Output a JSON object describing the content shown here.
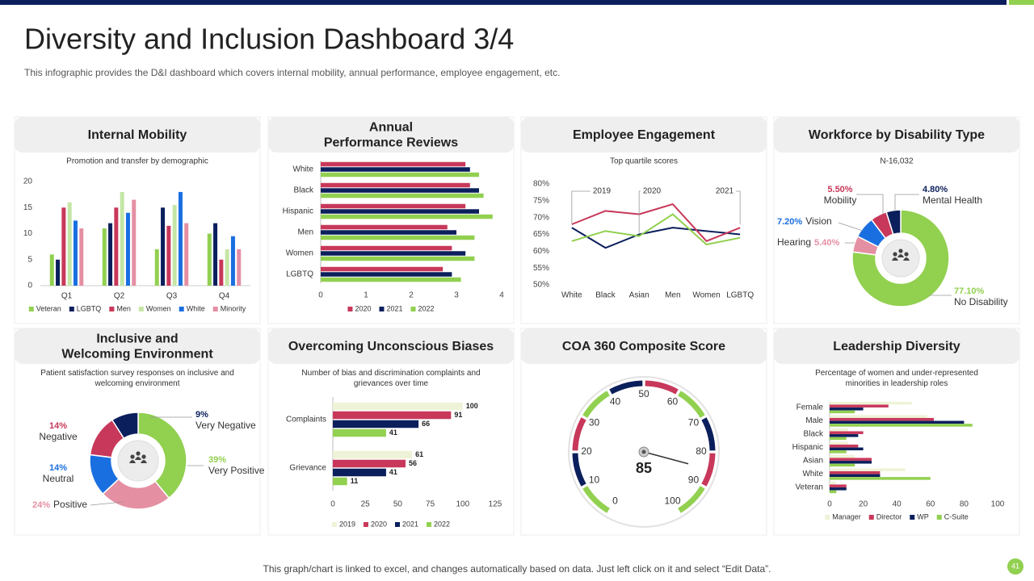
{
  "title": "Diversity and Inclusion Dashboard 3/4",
  "subtitle": "This infographic provides the D&I dashboard which covers internal mobility, annual performance, employee engagement, etc.",
  "footer": "This graph/chart is linked to excel, and changes automatically based on data. Just left click on it and select “Edit Data”.",
  "page_number": 41,
  "chart_data": [
    {
      "type": "bar",
      "title": "Internal Mobility",
      "subtitle": "Promotion and transfer by demographic",
      "categories": [
        "Q1",
        "Q2",
        "Q3",
        "Q4"
      ],
      "series": [
        {
          "name": "Veteran",
          "color": "#92d050",
          "values": [
            6,
            11,
            7,
            10
          ]
        },
        {
          "name": "LGBTQ",
          "color": "#0b1f5c",
          "values": [
            5,
            12,
            15,
            12
          ]
        },
        {
          "name": "Men",
          "color": "#c8385a",
          "values": [
            15,
            15,
            11.5,
            5
          ]
        },
        {
          "name": "Women",
          "color": "#c5e6a6",
          "values": [
            16,
            18,
            15.5,
            7
          ]
        },
        {
          "name": "White",
          "color": "#1a6fe0",
          "values": [
            12.5,
            14,
            18,
            9.5
          ]
        },
        {
          "name": "Minority",
          "color": "#e58fa3",
          "values": [
            11,
            16.5,
            12,
            7
          ]
        }
      ],
      "ylim": [
        0,
        20
      ],
      "yticks": [
        0,
        5,
        10,
        15,
        20
      ]
    },
    {
      "type": "hbar",
      "title": "Annual\nPerformance Reviews",
      "categories": [
        "White",
        "Black",
        "Hispanic",
        "Men",
        "Women",
        "LGBTQ"
      ],
      "series": [
        {
          "name": "2020",
          "color": "#c8385a",
          "values": [
            3.2,
            3.3,
            3.2,
            2.8,
            2.9,
            2.7
          ]
        },
        {
          "name": "2021",
          "color": "#0b1f5c",
          "values": [
            3.3,
            3.5,
            3.5,
            3.0,
            3.2,
            2.9
          ]
        },
        {
          "name": "2022",
          "color": "#92d050",
          "values": [
            3.5,
            3.6,
            3.8,
            3.4,
            3.4,
            3.1
          ]
        }
      ],
      "xlim": [
        0,
        4
      ],
      "xticks": [
        0,
        1,
        2,
        3,
        4
      ]
    },
    {
      "type": "line",
      "title": "Employee Engagement",
      "subtitle": "Top quartile scores",
      "categories": [
        "White",
        "Black",
        "Asian",
        "Men",
        "Women",
        "LGBTQ"
      ],
      "series": [
        {
          "name": "2019",
          "color": "#0b1f5c",
          "values": [
            67,
            61,
            65,
            67,
            66,
            65
          ]
        },
        {
          "name": "2020",
          "color": "#92d050",
          "values": [
            63,
            66,
            64.5,
            71,
            62,
            64
          ]
        },
        {
          "name": "2021",
          "color": "#c8385a",
          "values": [
            68,
            72,
            71,
            74,
            63,
            67
          ]
        }
      ],
      "ylim": [
        50,
        80
      ],
      "yticks": [
        {
          "value": 50,
          "label": "50%"
        },
        {
          "value": 55,
          "label": "55%"
        },
        {
          "value": 60,
          "label": "60%"
        },
        {
          "value": 65,
          "label": "65%"
        },
        {
          "value": 70,
          "label": "70%"
        },
        {
          "value": 75,
          "label": "75%"
        },
        {
          "value": 80,
          "label": "80%"
        }
      ]
    },
    {
      "type": "donut",
      "title": "Workforce by Disability Type",
      "subtitle": "N-16,032",
      "categories": [
        "No Disability",
        "Hearing",
        "Vision",
        "Mobility",
        "Mental Health"
      ],
      "values": [
        77.1,
        5.4,
        7.2,
        5.5,
        4.8
      ],
      "value_labels": [
        "77.10%",
        "5.40%",
        "7.20%",
        "5.50%",
        "4.80%"
      ],
      "colors": [
        "#92d050",
        "#e58fa3",
        "#1a6fe0",
        "#c8385a",
        "#0b1f5c"
      ]
    },
    {
      "type": "donut",
      "title": "Inclusive and\nWelcoming Environment",
      "subtitle": "Patient satisfaction survey responses on inclusive and\nwelcoming environment",
      "categories": [
        "Very Positive",
        "Positive",
        "Neutral",
        "Negative",
        "Very Negative"
      ],
      "values": [
        39,
        24,
        14,
        14,
        9
      ],
      "value_labels": [
        "39%",
        "24%",
        "14%",
        "14%",
        "9%"
      ],
      "colors": [
        "#92d050",
        "#e58fa3",
        "#1a6fe0",
        "#c8385a",
        "#0b1f5c"
      ]
    },
    {
      "type": "hbar",
      "title": "Overcoming Unconscious Biases",
      "subtitle": "Number of bias and discrimination complaints and\ngrievances over time",
      "categories": [
        "Complaints",
        "Grievance"
      ],
      "series": [
        {
          "name": "2019",
          "color": "#eef3d8",
          "values": [
            100,
            61
          ]
        },
        {
          "name": "2020",
          "color": "#c8385a",
          "values": [
            91,
            56
          ]
        },
        {
          "name": "2021",
          "color": "#0b1f5c",
          "values": [
            66,
            41
          ]
        },
        {
          "name": "2022",
          "color": "#92d050",
          "values": [
            41,
            11
          ]
        }
      ],
      "data_labels": true,
      "xlim": [
        0,
        125
      ],
      "xticks": [
        0,
        25,
        50,
        75,
        100,
        125
      ]
    },
    {
      "type": "gauge",
      "title": "COA 360 Composite Score",
      "value": 85,
      "ylim": [
        0,
        100
      ],
      "yticks": [
        0,
        10,
        20,
        30,
        40,
        50,
        60,
        70,
        80,
        90,
        100
      ],
      "band_colors": [
        "#92d050",
        "#0b1f5c",
        "#c8385a",
        "#92d050",
        "#0b1f5c",
        "#c8385a",
        "#92d050",
        "#0b1f5c",
        "#c8385a",
        "#92d050"
      ]
    },
    {
      "type": "hbar",
      "title": "Leadership Diversity",
      "subtitle": "Percentage of women and under-represented\nminorities in leadership roles",
      "categories": [
        "Female",
        "Male",
        "Black",
        "Hispanic",
        "Asian",
        "White",
        "Veteran"
      ],
      "series": [
        {
          "name": "Manager",
          "color": "#eef3d8",
          "values": [
            49,
            58,
            11,
            11,
            15,
            45,
            4
          ]
        },
        {
          "name": "Director",
          "color": "#c8385a",
          "values": [
            35,
            62,
            20,
            17,
            25,
            30,
            10
          ]
        },
        {
          "name": "WP",
          "color": "#0b1f5c",
          "values": [
            20,
            80,
            17,
            20,
            25,
            30,
            10
          ]
        },
        {
          "name": "C-Suite",
          "color": "#92d050",
          "values": [
            15,
            85,
            10,
            10,
            15,
            60,
            4
          ]
        }
      ],
      "xlim": [
        0,
        100
      ],
      "xticks": [
        0,
        20,
        40,
        60,
        80,
        100
      ]
    }
  ]
}
